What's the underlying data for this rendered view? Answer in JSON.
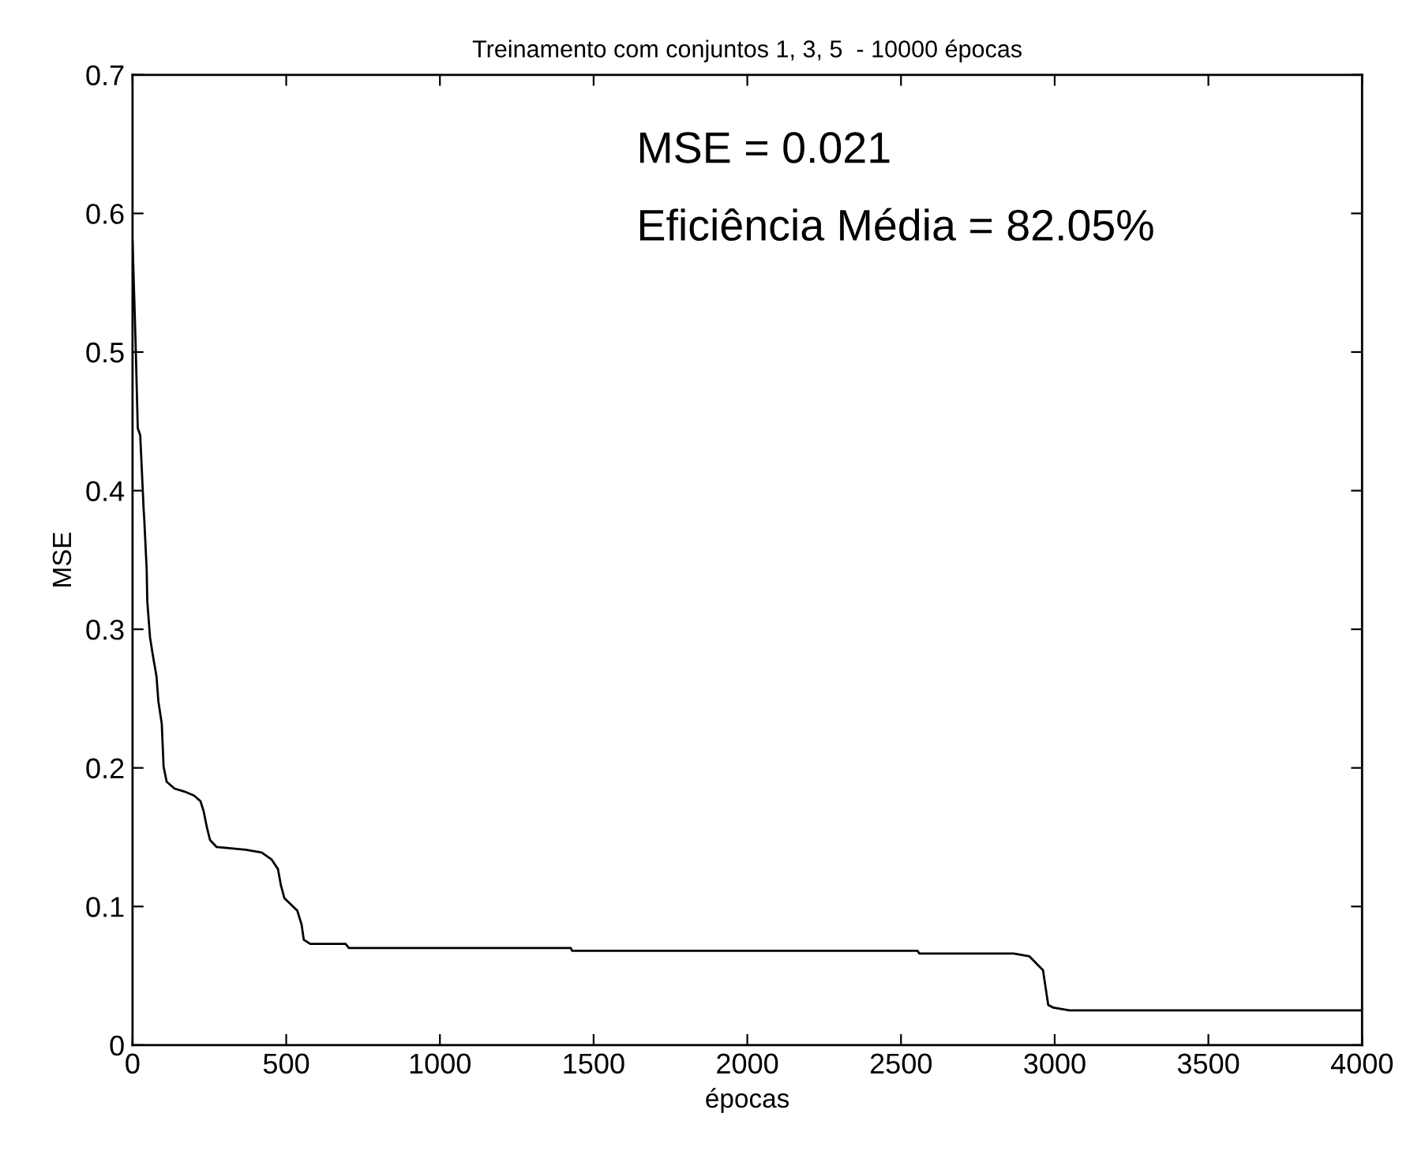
{
  "chart_data": {
    "type": "line",
    "title": "Treinamento com conjuntos 1, 3, 5  - 10000 épocas",
    "xlabel": "épocas",
    "ylabel": "MSE",
    "annotations": [
      "MSE = 0.021",
      "Eficiência Média = 82.05%"
    ],
    "series": [
      {
        "color": "#000000",
        "x": [
          0,
          10,
          17,
          25,
          36,
          38,
          46,
          48,
          57,
          67,
          78,
          84,
          95,
          101,
          111,
          137,
          168,
          200,
          221,
          231,
          242,
          252,
          273,
          368,
          420,
          452,
          473,
          483,
          494,
          536,
          550,
          557,
          578,
          693,
          704,
          1426,
          1430,
          2554,
          2560,
          2867,
          2918,
          2962,
          2979,
          2996,
          3048,
          4000
        ],
        "values": [
          0.58,
          0.506,
          0.445,
          0.44,
          0.387,
          0.38,
          0.343,
          0.32,
          0.294,
          0.28,
          0.266,
          0.248,
          0.232,
          0.201,
          0.19,
          0.185,
          0.183,
          0.18,
          0.176,
          0.169,
          0.157,
          0.148,
          0.143,
          0.141,
          0.139,
          0.134,
          0.127,
          0.115,
          0.106,
          0.097,
          0.087,
          0.076,
          0.073,
          0.073,
          0.07,
          0.07,
          0.068,
          0.068,
          0.066,
          0.066,
          0.064,
          0.054,
          0.029,
          0.027,
          0.025,
          0.025
        ]
      }
    ],
    "xlim": [
      0,
      4000
    ],
    "xticks": [
      0,
      500,
      1000,
      1500,
      2000,
      2500,
      3000,
      3500,
      4000
    ],
    "ylim": [
      0,
      0.7
    ],
    "yticks": [
      0,
      0.1,
      0.2,
      0.3,
      0.4,
      0.5,
      0.6,
      0.7
    ],
    "grid": false,
    "legend": false,
    "marker": "none",
    "line_style": "solid"
  }
}
